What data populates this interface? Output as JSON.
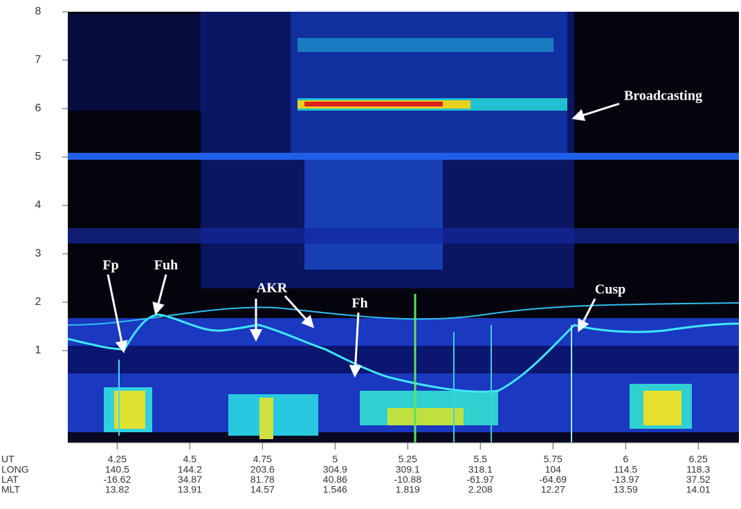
{
  "chart_data": {
    "type": "spectrogram",
    "xlim": [
      4.08,
      6.39
    ],
    "xticks": [
      4.25,
      4.5,
      4.75,
      5,
      5.25,
      5.5,
      5.75,
      6,
      6.25
    ],
    "x_label": "UT",
    "ylim": [
      -0.9,
      8
    ],
    "yticks": [
      1,
      2,
      3,
      4,
      5,
      6,
      7,
      8
    ],
    "tick_rows": [
      {
        "name": "LONG",
        "values": [
          140.5,
          144.2,
          203.6,
          304.9,
          309.1,
          318.1,
          104,
          114.5,
          118.3
        ]
      },
      {
        "name": "LAT",
        "values": [
          -16.62,
          34.87,
          81.78,
          40.86,
          -10.88,
          -61.97,
          -64.69,
          -13.97,
          37.52
        ]
      },
      {
        "name": "MLT",
        "values": [
          13.82,
          13.91,
          14.57,
          1.546,
          1.819,
          2.208,
          12.27,
          13.59,
          14.01
        ]
      }
    ],
    "annotations": [
      "Broadcasting",
      "Fp",
      "Fuh",
      "AKR",
      "Fh",
      "Cusp"
    ]
  }
}
